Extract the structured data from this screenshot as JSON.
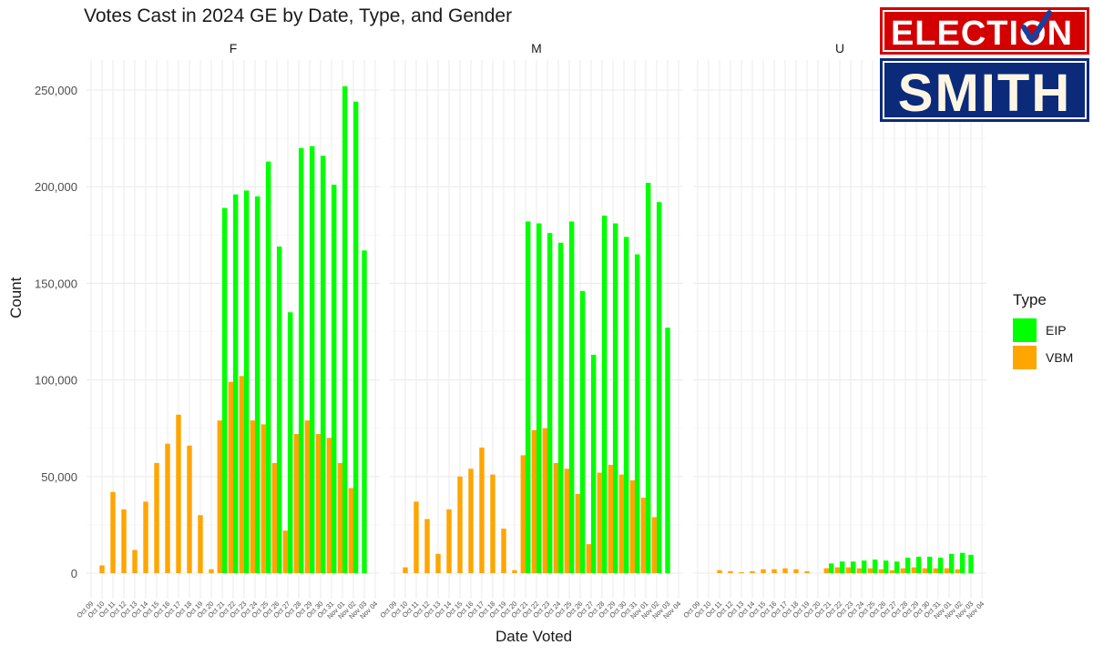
{
  "logo": {
    "line1": "ELECTION",
    "line2": "SMITH",
    "colors": {
      "red": "#d40000",
      "navy": "#0b2a7a",
      "white": "#ffffff",
      "check": "#1a3f9e"
    }
  },
  "chart_data": {
    "type": "bar",
    "title": "Votes Cast in 2024 GE by Date, Type, and Gender",
    "xlabel": "Date Voted",
    "ylabel": "Count",
    "legend": {
      "title": "Type",
      "placement": "right"
    },
    "ylim": [
      -25000,
      265000
    ],
    "yticks": [
      0,
      50000,
      100000,
      150000,
      200000,
      250000
    ],
    "ytick_labels": [
      "0",
      "50,000",
      "100,000",
      "150,000",
      "200,000",
      "250,000"
    ],
    "grid": true,
    "colors": {
      "EIP": "#00ff00",
      "VBM": "#ffa500"
    },
    "categories": [
      "Oct 09",
      "Oct 10",
      "Oct 11",
      "Oct 12",
      "Oct 13",
      "Oct 14",
      "Oct 15",
      "Oct 16",
      "Oct 17",
      "Oct 18",
      "Oct 19",
      "Oct 20",
      "Oct 21",
      "Oct 22",
      "Oct 23",
      "Oct 24",
      "Oct 25",
      "Oct 26",
      "Oct 27",
      "Oct 28",
      "Oct 29",
      "Oct 30",
      "Oct 31",
      "Nov 01",
      "Nov 02",
      "Nov 03",
      "Nov 04"
    ],
    "facets": [
      {
        "name": "F",
        "series": [
          {
            "name": "EIP",
            "values": [
              null,
              null,
              null,
              null,
              null,
              null,
              null,
              null,
              null,
              null,
              null,
              null,
              189000,
              196000,
              198000,
              195000,
              213000,
              169000,
              135000,
              220000,
              221000,
              216000,
              201000,
              252000,
              244000,
              167000,
              null
            ]
          },
          {
            "name": "VBM",
            "values": [
              null,
              4000,
              42000,
              33000,
              12000,
              37000,
              57000,
              67000,
              82000,
              66000,
              30000,
              2000,
              79000,
              99000,
              102000,
              79000,
              77000,
              57000,
              22000,
              72000,
              79000,
              72000,
              70000,
              57000,
              44000,
              null,
              null
            ]
          }
        ]
      },
      {
        "name": "M",
        "series": [
          {
            "name": "EIP",
            "values": [
              null,
              null,
              null,
              null,
              null,
              null,
              null,
              null,
              null,
              null,
              null,
              null,
              182000,
              181000,
              176000,
              171000,
              182000,
              146000,
              113000,
              185000,
              181000,
              174000,
              165000,
              202000,
              192000,
              127000,
              null
            ]
          },
          {
            "name": "VBM",
            "values": [
              null,
              3000,
              37000,
              28000,
              10000,
              33000,
              50000,
              54000,
              65000,
              51000,
              23000,
              1500,
              61000,
              74000,
              75000,
              57000,
              54000,
              41000,
              15000,
              52000,
              56000,
              51000,
              48000,
              39000,
              29000,
              null,
              null
            ]
          }
        ]
      },
      {
        "name": "U",
        "series": [
          {
            "name": "EIP",
            "values": [
              null,
              null,
              null,
              null,
              null,
              null,
              null,
              null,
              null,
              null,
              null,
              null,
              5000,
              6000,
              6000,
              6500,
              7000,
              6500,
              6000,
              8000,
              8500,
              8500,
              8000,
              10000,
              10500,
              9500,
              null
            ]
          },
          {
            "name": "VBM",
            "values": [
              null,
              null,
              1500,
              1000,
              500,
              1000,
              2000,
              2000,
              2500,
              2000,
              1000,
              null,
              2500,
              3000,
              3000,
              2500,
              2500,
              2000,
              1500,
              2500,
              3000,
              2500,
              2500,
              2500,
              2000,
              null,
              null
            ]
          }
        ]
      }
    ]
  }
}
